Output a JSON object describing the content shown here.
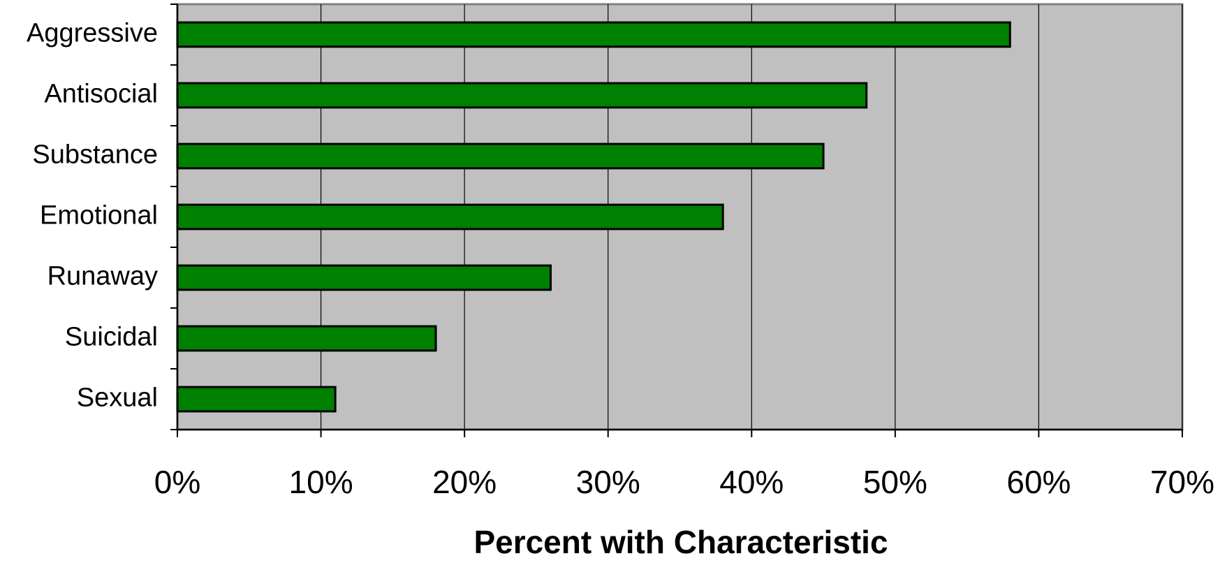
{
  "chart_data": {
    "type": "bar",
    "orientation": "horizontal",
    "categories": [
      "Aggressive",
      "Antisocial",
      "Substance",
      "Emotional",
      "Runaway",
      "Suicidal",
      "Sexual"
    ],
    "values": [
      58,
      48,
      45,
      38,
      26,
      18,
      11
    ],
    "x_ticks": [
      "0%",
      "10%",
      "20%",
      "30%",
      "40%",
      "50%",
      "60%",
      "70%"
    ],
    "xlim": [
      0,
      70
    ],
    "xlabel": "Percent with Characteristic",
    "ylabel": "",
    "title": "",
    "grid": "vertical",
    "legend": "none",
    "colors": {
      "bar": "#008000",
      "plot_background": "#c0c0c0",
      "gridline": "#000000"
    }
  }
}
